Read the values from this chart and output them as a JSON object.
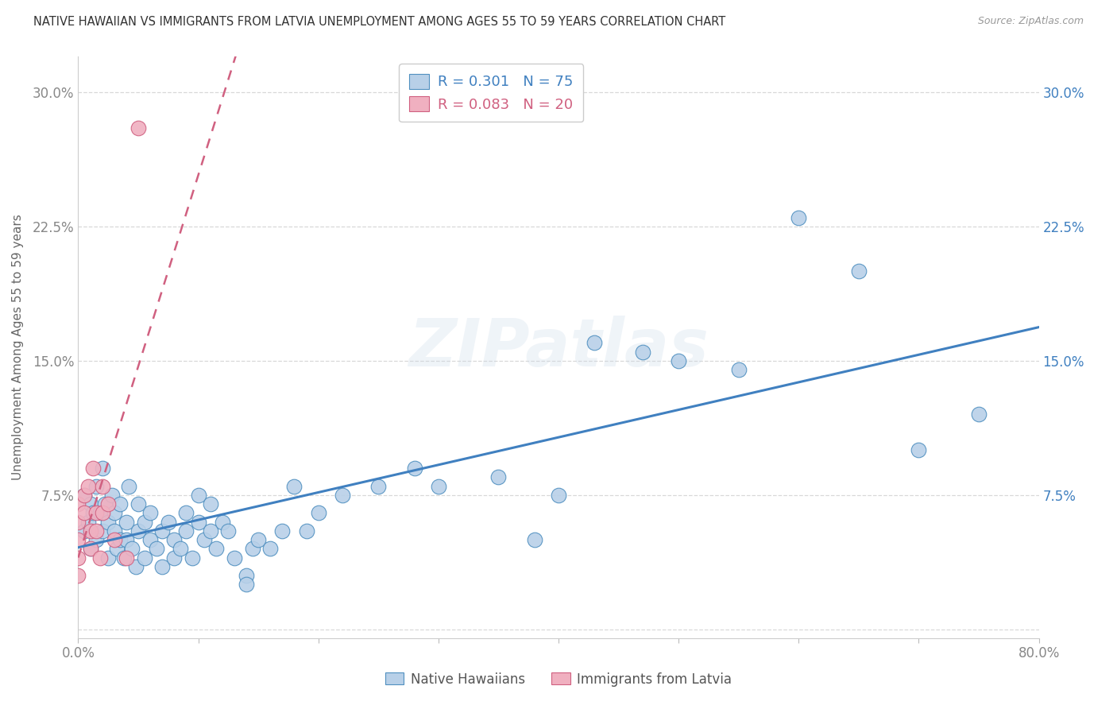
{
  "title": "NATIVE HAWAIIAN VS IMMIGRANTS FROM LATVIA UNEMPLOYMENT AMONG AGES 55 TO 59 YEARS CORRELATION CHART",
  "source": "Source: ZipAtlas.com",
  "ylabel": "Unemployment Among Ages 55 to 59 years",
  "xlim": [
    0.0,
    0.8
  ],
  "ylim": [
    -0.005,
    0.32
  ],
  "xticks": [
    0.0,
    0.1,
    0.2,
    0.3,
    0.4,
    0.5,
    0.6,
    0.7,
    0.8
  ],
  "xticklabels": [
    "0.0%",
    "",
    "",
    "",
    "",
    "",
    "",
    "",
    "80.0%"
  ],
  "yticks": [
    0.0,
    0.075,
    0.15,
    0.225,
    0.3
  ],
  "yticklabels_left": [
    "",
    "7.5%",
    "15.0%",
    "22.5%",
    "30.0%"
  ],
  "yticklabels_right": [
    "",
    "7.5%",
    "15.0%",
    "22.5%",
    "30.0%"
  ],
  "legend_1_r": "R = 0.301",
  "legend_1_n": "N = 75",
  "legend_2_r": "R = 0.083",
  "legend_2_n": "N = 20",
  "legend_label_1": "Native Hawaiians",
  "legend_label_2": "Immigrants from Latvia",
  "color_blue_fill": "#b8d0e8",
  "color_blue_edge": "#5090c0",
  "color_blue_line": "#4080c0",
  "color_pink_fill": "#f0b0c0",
  "color_pink_edge": "#d06080",
  "color_pink_line": "#d06080",
  "color_title": "#333333",
  "color_source": "#999999",
  "color_grid": "#d8d8d8",
  "color_tick": "#888888",
  "watermark": "ZIPatlas",
  "native_hawaiians_x": [
    0.005,
    0.005,
    0.008,
    0.01,
    0.01,
    0.012,
    0.015,
    0.015,
    0.018,
    0.02,
    0.02,
    0.022,
    0.025,
    0.025,
    0.028,
    0.03,
    0.03,
    0.032,
    0.035,
    0.035,
    0.038,
    0.04,
    0.04,
    0.042,
    0.045,
    0.048,
    0.05,
    0.05,
    0.055,
    0.055,
    0.06,
    0.06,
    0.065,
    0.07,
    0.07,
    0.075,
    0.08,
    0.08,
    0.085,
    0.09,
    0.09,
    0.095,
    0.1,
    0.1,
    0.105,
    0.11,
    0.11,
    0.115,
    0.12,
    0.125,
    0.13,
    0.14,
    0.14,
    0.145,
    0.15,
    0.16,
    0.17,
    0.18,
    0.19,
    0.2,
    0.22,
    0.25,
    0.28,
    0.3,
    0.35,
    0.38,
    0.4,
    0.43,
    0.47,
    0.5,
    0.55,
    0.6,
    0.65,
    0.7,
    0.75
  ],
  "native_hawaiians_y": [
    0.055,
    0.075,
    0.06,
    0.045,
    0.07,
    0.065,
    0.05,
    0.08,
    0.065,
    0.055,
    0.09,
    0.07,
    0.06,
    0.04,
    0.075,
    0.065,
    0.055,
    0.045,
    0.07,
    0.05,
    0.04,
    0.06,
    0.05,
    0.08,
    0.045,
    0.035,
    0.055,
    0.07,
    0.04,
    0.06,
    0.05,
    0.065,
    0.045,
    0.055,
    0.035,
    0.06,
    0.04,
    0.05,
    0.045,
    0.055,
    0.065,
    0.04,
    0.075,
    0.06,
    0.05,
    0.055,
    0.07,
    0.045,
    0.06,
    0.055,
    0.04,
    0.03,
    0.025,
    0.045,
    0.05,
    0.045,
    0.055,
    0.08,
    0.055,
    0.065,
    0.075,
    0.08,
    0.09,
    0.08,
    0.085,
    0.05,
    0.075,
    0.16,
    0.155,
    0.15,
    0.145,
    0.23,
    0.2,
    0.1,
    0.12
  ],
  "immigrants_latvia_x": [
    0.0,
    0.0,
    0.0,
    0.0,
    0.0,
    0.005,
    0.005,
    0.008,
    0.01,
    0.01,
    0.012,
    0.015,
    0.015,
    0.018,
    0.02,
    0.02,
    0.025,
    0.03,
    0.04,
    0.05
  ],
  "immigrants_latvia_y": [
    0.05,
    0.06,
    0.07,
    0.04,
    0.03,
    0.065,
    0.075,
    0.08,
    0.055,
    0.045,
    0.09,
    0.065,
    0.055,
    0.04,
    0.08,
    0.065,
    0.07,
    0.05,
    0.04,
    0.28
  ]
}
